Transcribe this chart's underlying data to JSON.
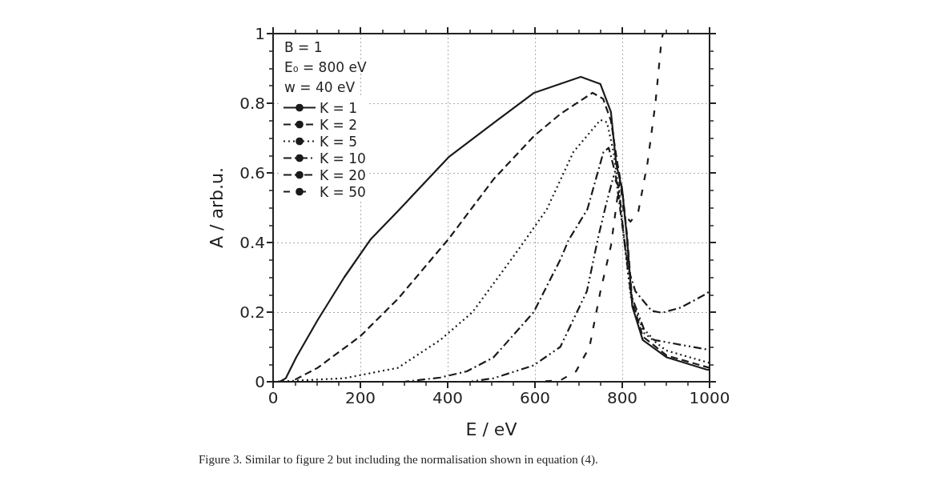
{
  "chart_data": {
    "type": "line",
    "xlabel": "E / eV",
    "ylabel": "A / arb.u.",
    "xlim": [
      0,
      1000
    ],
    "xticks": [
      0,
      200,
      400,
      600,
      800,
      1000
    ],
    "ylim": [
      0,
      1
    ],
    "yticks": [
      0,
      0.2,
      0.4,
      0.6,
      0.8,
      1
    ],
    "grid": true,
    "legend": "top left",
    "marker": "none",
    "annotations": [
      "B = 1",
      "E₀ = 800 eV",
      "w = 40 eV",
      "Figure 3. Similar to figure 2 but including the normalisation shown in equation (4)."
    ],
    "series": [
      {
        "name": "K = 1",
        "color": "#1a1a1a",
        "line_style": "solid",
        "x": [
          0,
          15,
          29,
          53,
          102,
          163,
          224,
          286,
          402,
          506,
          598,
          705,
          750,
          774,
          786,
          800,
          811,
          823,
          847,
          902,
          993,
          1000
        ],
        "values": [
          0,
          0,
          0.01,
          0.07,
          0.177,
          0.3,
          0.41,
          0.49,
          0.645,
          0.744,
          0.83,
          0.876,
          0.855,
          0.775,
          0.627,
          0.55,
          0.41,
          0.216,
          0.12,
          0.07,
          0.035,
          0.034
        ]
      },
      {
        "name": "K = 2",
        "color": "#1a1a1a",
        "line_style": "dashed",
        "x": [
          0,
          41,
          102,
          200,
          286,
          402,
          506,
          598,
          659,
          732,
          756,
          774,
          789,
          800,
          811,
          823,
          847,
          902,
          1000
        ],
        "values": [
          0,
          0,
          0.04,
          0.131,
          0.238,
          0.41,
          0.583,
          0.706,
          0.77,
          0.83,
          0.813,
          0.75,
          0.627,
          0.55,
          0.42,
          0.23,
          0.13,
          0.075,
          0.04
        ]
      },
      {
        "name": "K = 5",
        "color": "#1a1a1a",
        "line_style": "dotted",
        "x": [
          0,
          163,
          286,
          383,
          457,
          542,
          568,
          627,
          688,
          750,
          765,
          780,
          792,
          805,
          820,
          850,
          900,
          1000
        ],
        "values": [
          0,
          0.01,
          0.04,
          0.12,
          0.2,
          0.345,
          0.39,
          0.495,
          0.66,
          0.752,
          0.745,
          0.66,
          0.55,
          0.4,
          0.24,
          0.14,
          0.09,
          0.054
        ]
      },
      {
        "name": "K = 10",
        "color": "#1a1a1a",
        "line_style": "dashdot",
        "x": [
          0,
          300,
          383,
          444,
          505,
          597,
          659,
          677,
          720,
          757,
          769,
          784,
          800,
          815,
          830,
          867,
          891,
          934,
          989,
          1000
        ],
        "values": [
          0,
          0,
          0.012,
          0.03,
          0.07,
          0.2,
          0.353,
          0.407,
          0.495,
          0.66,
          0.672,
          0.6,
          0.45,
          0.32,
          0.26,
          0.204,
          0.198,
          0.213,
          0.25,
          0.26
        ]
      },
      {
        "name": "K = 20",
        "color": "#1a1a1a",
        "line_style": "dashdotdot",
        "x": [
          0,
          450,
          505,
          597,
          658,
          719,
          744,
          763,
          780,
          792,
          805,
          820,
          850,
          873,
          993,
          1000
        ],
        "values": [
          0,
          0,
          0.01,
          0.047,
          0.1,
          0.26,
          0.41,
          0.51,
          0.59,
          0.56,
          0.4,
          0.25,
          0.15,
          0.12,
          0.093,
          0.093
        ]
      },
      {
        "name": "K = 50",
        "color": "#1a1a1a",
        "line_style": "loosely dashed",
        "x": [
          0,
          600,
          658,
          694,
          725,
          750,
          774,
          789,
          795,
          804,
          819,
          837,
          858,
          876,
          889,
          893
        ],
        "values": [
          0,
          0,
          0.004,
          0.03,
          0.1,
          0.26,
          0.39,
          0.53,
          0.58,
          0.48,
          0.46,
          0.49,
          0.63,
          0.8,
          0.97,
          1
        ]
      }
    ]
  }
}
